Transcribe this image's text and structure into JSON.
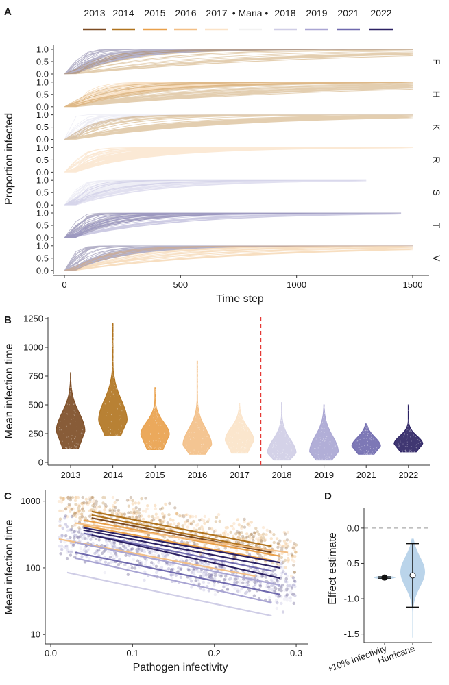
{
  "legend": {
    "items": [
      {
        "label": "2013",
        "color": "#7b4a22"
      },
      {
        "label": "2014",
        "color": "#b0731e"
      },
      {
        "label": "2015",
        "color": "#e9a04a"
      },
      {
        "label": "2016",
        "color": "#f3bf86"
      },
      {
        "label": "2017",
        "color": "#fbe3c8"
      },
      {
        "label": "• Maria •",
        "color": "#f2f2f2"
      },
      {
        "label": "2018",
        "color": "#cfcde6"
      },
      {
        "label": "2019",
        "color": "#a9a5d3"
      },
      {
        "label": "2021",
        "color": "#6f69ae"
      },
      {
        "label": "2022",
        "color": "#2b2163"
      }
    ]
  },
  "chart_data": [
    {
      "panel": "A",
      "type": "line",
      "xlabel": "Time step",
      "ylabel": "Proportion infected",
      "xlim": [
        0,
        1500
      ],
      "xticks": [
        "0",
        "500",
        "1000",
        "1500"
      ],
      "yticks": [
        "0.0",
        "0.5",
        "1.0"
      ],
      "facets": [
        {
          "label": "F",
          "series": [
            {
              "name": "2022",
              "color": "#2b2163",
              "weight": 0.7,
              "rise": 100,
              "reach": 1500
            },
            {
              "name": "2014",
              "color": "#b0731e",
              "weight": 0.3,
              "rise": 500,
              "reach": 1500
            }
          ]
        },
        {
          "label": "H",
          "series": [
            {
              "name": "2015",
              "color": "#e9a04a",
              "weight": 0.5,
              "rise": 150,
              "reach": 1500
            },
            {
              "name": "2014",
              "color": "#b0731e",
              "weight": 0.5,
              "rise": 500,
              "reach": 1500
            }
          ]
        },
        {
          "label": "K",
          "series": [
            {
              "name": "2018",
              "color": "#cfcde6",
              "weight": 0.3,
              "rise": 50,
              "reach": 1500
            },
            {
              "name": "2014",
              "color": "#b0731e",
              "weight": 0.7,
              "rise": 300,
              "reach": 1500
            }
          ]
        },
        {
          "label": "R",
          "series": [
            {
              "name": "2016",
              "color": "#f3bf86",
              "weight": 1.0,
              "rise": 150,
              "reach": 1500
            }
          ]
        },
        {
          "label": "S",
          "series": [
            {
              "name": "2018",
              "color": "#cfcde6",
              "weight": 0.7,
              "rise": 80,
              "reach": 1300
            },
            {
              "name": "2019",
              "color": "#a9a5d3",
              "weight": 0.3,
              "rise": 150,
              "reach": 1300
            }
          ]
        },
        {
          "label": "T",
          "series": [
            {
              "name": "2022",
              "color": "#2b2163",
              "weight": 0.6,
              "rise": 100,
              "reach": 1450
            },
            {
              "name": "2021",
              "color": "#6f69ae",
              "weight": 0.4,
              "rise": 200,
              "reach": 1450
            }
          ]
        },
        {
          "label": "V",
          "series": [
            {
              "name": "2022",
              "color": "#2b2163",
              "weight": 0.6,
              "rise": 100,
              "reach": 1500
            },
            {
              "name": "2015",
              "color": "#e9a04a",
              "weight": 0.4,
              "rise": 350,
              "reach": 1500
            }
          ]
        }
      ]
    },
    {
      "panel": "B",
      "type": "violin",
      "xlabel": "",
      "ylabel": "Mean infection time",
      "ylim": [
        0,
        1250
      ],
      "yticks": [
        0,
        250,
        500,
        750,
        1000,
        1250
      ],
      "hurricane_line_after": "2017",
      "hurricane_line_color": "#e53935",
      "violins": [
        {
          "category": "2013",
          "color": "#7b4a22",
          "min": 120,
          "max": 780,
          "mode": 270,
          "spread": 160
        },
        {
          "category": "2014",
          "color": "#b0731e",
          "min": 230,
          "max": 1210,
          "mode": 360,
          "spread": 180
        },
        {
          "category": "2015",
          "color": "#e9a04a",
          "min": 110,
          "max": 650,
          "mode": 240,
          "spread": 110
        },
        {
          "category": "2016",
          "color": "#f3bf86",
          "min": 70,
          "max": 880,
          "mode": 150,
          "spread": 140
        },
        {
          "category": "2017",
          "color": "#fbe3c8",
          "min": 80,
          "max": 510,
          "mode": 190,
          "spread": 110
        },
        {
          "category": "2018",
          "color": "#cfcde6",
          "min": 20,
          "max": 520,
          "mode": 80,
          "spread": 120
        },
        {
          "category": "2019",
          "color": "#a9a5d3",
          "min": 20,
          "max": 500,
          "mode": 90,
          "spread": 140
        },
        {
          "category": "2021",
          "color": "#6f69ae",
          "min": 70,
          "max": 340,
          "mode": 140,
          "spread": 80
        },
        {
          "category": "2022",
          "color": "#2b2163",
          "min": 90,
          "max": 500,
          "mode": 160,
          "spread": 70
        }
      ]
    },
    {
      "panel": "C",
      "type": "scatter",
      "xlabel": "Pathogen infectivity",
      "ylabel": "Mean infection time",
      "xlim": [
        0,
        0.31
      ],
      "ylim_log10": [
        0.92,
        3.12
      ],
      "xticks": [
        "0.0",
        "0.1",
        "0.2",
        "0.3"
      ],
      "yticks": [
        "10",
        "100",
        "1000"
      ],
      "yticks_values": [
        10,
        100,
        1000
      ],
      "regression_lines": [
        {
          "color": "#b0731e",
          "x": [
            0.05,
            0.27
          ],
          "y": [
            700,
            210
          ]
        },
        {
          "color": "#b0731e",
          "x": [
            0.05,
            0.26
          ],
          "y": [
            620,
            190
          ]
        },
        {
          "color": "#7b4a22",
          "x": [
            0.05,
            0.27
          ],
          "y": [
            560,
            170
          ]
        },
        {
          "color": "#e9a04a",
          "x": [
            0.04,
            0.28
          ],
          "y": [
            520,
            150
          ]
        },
        {
          "color": "#f3bf86",
          "x": [
            0.03,
            0.29
          ],
          "y": [
            470,
            170
          ]
        },
        {
          "color": "#e9a04a",
          "x": [
            0.04,
            0.27
          ],
          "y": [
            430,
            130
          ]
        },
        {
          "color": "#2b2163",
          "x": [
            0.04,
            0.28
          ],
          "y": [
            400,
            120
          ]
        },
        {
          "color": "#2b2163",
          "x": [
            0.04,
            0.28
          ],
          "y": [
            370,
            100
          ]
        },
        {
          "color": "#6f69ae",
          "x": [
            0.04,
            0.27
          ],
          "y": [
            330,
            90
          ]
        },
        {
          "color": "#2b2163",
          "x": [
            0.05,
            0.28
          ],
          "y": [
            310,
            70
          ]
        },
        {
          "color": "#f3bf86",
          "x": [
            0.01,
            0.25
          ],
          "y": [
            270,
            75
          ]
        },
        {
          "color": "#a9a5d3",
          "x": [
            0.03,
            0.28
          ],
          "y": [
            240,
            55
          ]
        },
        {
          "color": "#6f69ae",
          "x": [
            0.03,
            0.28
          ],
          "y": [
            170,
            40
          ]
        },
        {
          "color": "#a9a5d3",
          "x": [
            0.03,
            0.27
          ],
          "y": [
            140,
            30
          ]
        },
        {
          "color": "#cfcde6",
          "x": [
            0.02,
            0.27
          ],
          "y": [
            85,
            19
          ]
        }
      ]
    },
    {
      "panel": "D",
      "type": "violin",
      "xlabel": "",
      "ylabel": "Effect estimate",
      "ylim": [
        -1.62,
        0.28
      ],
      "yticks": [
        "0.0",
        "-0.5",
        "-1.0",
        "-1.5"
      ],
      "yticks_values": [
        0.0,
        -0.5,
        -1.0,
        -1.5
      ],
      "categories": [
        "+10% Infectivity",
        "Hurricane"
      ],
      "estimates": [
        {
          "category": "+10% Infectivity",
          "mean": -0.7,
          "lower": -0.71,
          "upper": -0.69,
          "marker_color": "#111111"
        },
        {
          "category": "Hurricane",
          "mean": -0.67,
          "lower": -1.12,
          "upper": -0.22,
          "marker_color": "#ffffff",
          "violin_color": "#aecde6",
          "violin_min": -1.55,
          "violin_max": -0.15
        }
      ]
    }
  ],
  "panel_labels": [
    "A",
    "B",
    "C",
    "D"
  ]
}
